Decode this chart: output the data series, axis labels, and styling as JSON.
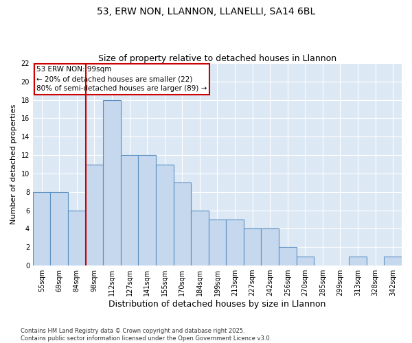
{
  "title1": "53, ERW NON, LLANNON, LLANELLI, SA14 6BL",
  "title2": "Size of property relative to detached houses in Llannon",
  "xlabel": "Distribution of detached houses by size in Llannon",
  "ylabel": "Number of detached properties",
  "categories": [
    "55sqm",
    "69sqm",
    "84sqm",
    "98sqm",
    "112sqm",
    "127sqm",
    "141sqm",
    "155sqm",
    "170sqm",
    "184sqm",
    "199sqm",
    "213sqm",
    "227sqm",
    "242sqm",
    "256sqm",
    "270sqm",
    "285sqm",
    "299sqm",
    "313sqm",
    "328sqm",
    "342sqm"
  ],
  "values": [
    8,
    8,
    6,
    11,
    18,
    12,
    12,
    11,
    9,
    6,
    5,
    5,
    4,
    4,
    2,
    1,
    0,
    0,
    1,
    0,
    1
  ],
  "bar_color": "#c5d8ee",
  "bar_edge_color": "#5a8fc0",
  "bar_linewidth": 0.8,
  "vline_x": 3.0,
  "vline_color": "#cc0000",
  "annotation_lines": [
    "53 ERW NON: 99sqm",
    "← 20% of detached houses are smaller (22)",
    "80% of semi-detached houses are larger (89) →"
  ],
  "annotation_box_color": "#cc0000",
  "background_color": "#dde8f5",
  "ylim": [
    0,
    22
  ],
  "yticks": [
    0,
    2,
    4,
    6,
    8,
    10,
    12,
    14,
    16,
    18,
    20,
    22
  ],
  "footnote": "Contains HM Land Registry data © Crown copyright and database right 2025.\nContains public sector information licensed under the Open Government Licence v3.0.",
  "title_fontsize": 10,
  "subtitle_fontsize": 9,
  "tick_fontsize": 7,
  "ylabel_fontsize": 8,
  "xlabel_fontsize": 9,
  "annotation_fontsize": 7.5,
  "footnote_fontsize": 6
}
